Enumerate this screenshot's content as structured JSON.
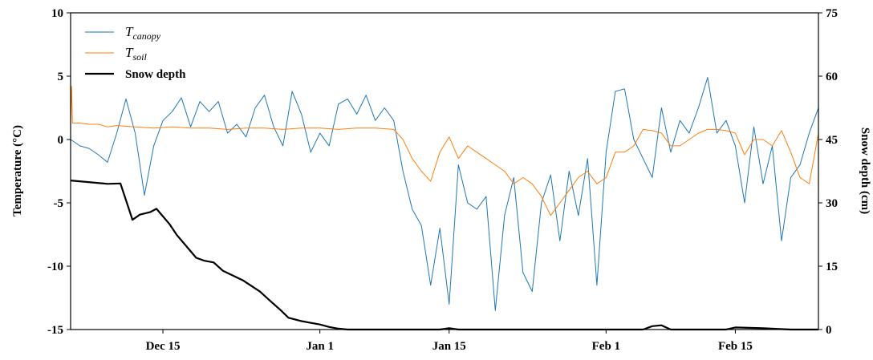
{
  "chart_data": {
    "type": "line",
    "xlim": [
      5,
      86
    ],
    "xticks": [
      {
        "value": 15,
        "label": "Dec 15"
      },
      {
        "value": 32,
        "label": "Jan 1"
      },
      {
        "value": 46,
        "label": "Jan 15"
      },
      {
        "value": 63,
        "label": "Feb 1"
      },
      {
        "value": 77,
        "label": "Feb 15"
      }
    ],
    "ylim": [
      -15,
      10
    ],
    "yticks": [
      -15,
      -10,
      -5,
      0,
      5,
      10
    ],
    "y2lim": [
      0,
      75
    ],
    "y2ticks": [
      0,
      15,
      30,
      45,
      60,
      75
    ],
    "ylabel": "Temperature (°C)",
    "y2label": "Snow depth (cm)",
    "legend": "upper left",
    "series": [
      {
        "name": "Tcanopy",
        "color": "#1f77b4",
        "width": 1,
        "x": [
          5,
          6,
          7,
          8,
          9,
          10,
          11,
          12,
          13,
          14,
          15,
          16,
          17,
          18,
          19,
          20,
          21,
          22,
          23,
          24,
          25,
          26,
          27,
          28,
          29,
          30,
          31,
          32,
          33,
          34,
          35,
          36,
          37,
          38,
          39,
          40,
          41,
          42,
          43,
          44,
          45,
          46,
          47,
          48,
          49,
          50,
          51,
          52,
          53,
          54,
          55,
          56,
          57,
          58,
          59,
          60,
          61,
          62,
          63,
          64,
          65,
          66,
          67,
          68,
          69,
          70,
          71,
          72,
          73,
          74,
          75,
          76,
          77,
          78,
          79,
          80,
          81,
          82,
          83,
          84,
          85,
          86
        ],
        "values": [
          0,
          -0.5,
          -0.7,
          -1.2,
          -1.8,
          0.5,
          3.2,
          0.5,
          -4.4,
          -0.5,
          1.5,
          2.2,
          3.3,
          1.0,
          3.0,
          2.2,
          3.0,
          0.5,
          1.2,
          0.2,
          2.5,
          3.5,
          1.0,
          -0.5,
          3.8,
          2.0,
          -1.0,
          0.5,
          -0.5,
          2.8,
          3.2,
          2.0,
          3.5,
          1.5,
          2.5,
          1.5,
          -2.5,
          -5.5,
          -6.8,
          -11.5,
          -7.0,
          -13.0,
          -2.0,
          -5.0,
          -5.5,
          -4.5,
          -13.5,
          -6.0,
          -3.0,
          -10.5,
          -12.0,
          -5.0,
          -2.8,
          -8.0,
          -2.5,
          -6.0,
          -1.5,
          -11.5,
          -1.0,
          3.8,
          4.0,
          0.0,
          -1.5,
          -3.0,
          2.5,
          -1.0,
          1.5,
          0.5,
          2.5,
          4.9,
          0.5,
          1.5,
          -0.5,
          -5.0,
          1.0,
          -3.5,
          -0.5,
          -8.0,
          -3.0,
          -2.0,
          0.5,
          2.5
        ]
      },
      {
        "name": "Tsoil",
        "color": "#ff7f0e",
        "width": 1,
        "x": [
          5,
          5.1,
          5.2,
          6,
          7,
          8,
          9,
          10,
          12,
          14,
          16,
          18,
          20,
          22,
          24,
          26,
          28,
          30,
          32,
          34,
          36,
          38,
          40,
          41,
          42,
          43,
          44,
          45,
          46,
          47,
          48,
          49,
          50,
          51,
          52,
          53,
          54,
          55,
          56,
          57,
          58,
          59,
          60,
          61,
          62,
          63,
          64,
          65,
          66,
          67,
          68,
          69,
          70,
          71,
          72,
          73,
          74,
          75,
          76,
          77,
          78,
          79,
          80,
          81,
          82,
          83,
          84,
          85,
          86
        ],
        "values": [
          1.3,
          4.2,
          1.3,
          1.3,
          1.2,
          1.2,
          1.0,
          1.1,
          1.0,
          0.9,
          1.0,
          0.9,
          0.9,
          0.8,
          0.9,
          0.9,
          0.8,
          0.9,
          0.9,
          0.8,
          0.9,
          0.9,
          0.8,
          0.0,
          -1.5,
          -2.5,
          -3.3,
          -1.0,
          0.2,
          -1.5,
          -0.5,
          -1.0,
          -1.5,
          -2.0,
          -2.5,
          -3.5,
          -3.0,
          -3.5,
          -4.5,
          -6.0,
          -5.0,
          -4.0,
          -3.0,
          -2.5,
          -3.5,
          -3.0,
          -1.0,
          -1.0,
          -0.5,
          0.8,
          0.7,
          0.5,
          -0.5,
          -0.5,
          0.0,
          0.5,
          0.8,
          0.8,
          0.7,
          0.5,
          -1.2,
          0.0,
          0.0,
          -0.5,
          0.7,
          -1.0,
          -3.0,
          -3.5,
          0.5
        ]
      },
      {
        "name": "Snow depth",
        "color": "#000000",
        "width": 2.2,
        "axis": "y2",
        "x": [
          5,
          9,
          10.4,
          11.7,
          12.5,
          13.6,
          14.3,
          15.7,
          16.5,
          18.6,
          19.5,
          20.5,
          21.5,
          23.7,
          25.5,
          26.5,
          27.8,
          28.6,
          30,
          32,
          33,
          34,
          35,
          45,
          46,
          47,
          67,
          68,
          69,
          70,
          76,
          77,
          80,
          83,
          86
        ],
        "values": [
          35.3,
          34.5,
          34.6,
          26,
          27.2,
          27.8,
          28.6,
          25,
          22.4,
          17,
          16.3,
          15.9,
          13.9,
          11.6,
          9,
          7,
          4.5,
          2.8,
          2,
          1.2,
          0.6,
          0.2,
          0,
          0,
          0.3,
          0,
          0,
          0.8,
          1.0,
          0,
          0,
          0.5,
          0.3,
          0,
          0
        ]
      }
    ]
  }
}
